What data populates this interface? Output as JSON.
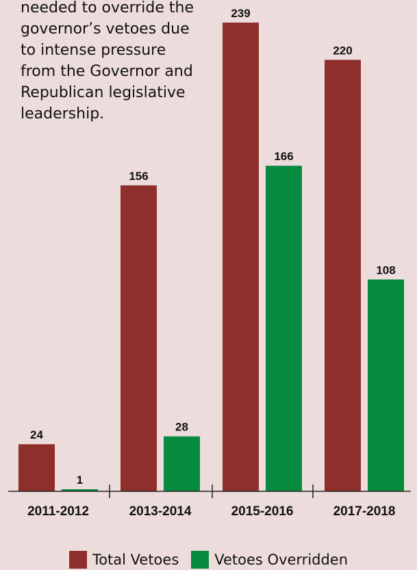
{
  "annotation_lines": [
    "needed to override the",
    "governor’s vetoes due",
    "to intense pressure",
    "from the Governor and",
    "Republican legislative",
    "leadership."
  ],
  "colors": {
    "total_vetoes": "#8f2f2b",
    "vetoes_overridden": "#068a3f",
    "axis": "#222222"
  },
  "chart_data": {
    "type": "bar",
    "categories": [
      "2011-2012",
      "2013-2014",
      "2015-2016",
      "2017-2018"
    ],
    "series": [
      {
        "name": "Total Vetoes",
        "values": [
          24,
          156,
          239,
          220
        ]
      },
      {
        "name": "Vetoes Overridden",
        "values": [
          1,
          28,
          166,
          108
        ]
      }
    ],
    "value_labels": true,
    "ylim": [
      0,
      239
    ],
    "grid": false,
    "legend_position": "bottom-center"
  }
}
